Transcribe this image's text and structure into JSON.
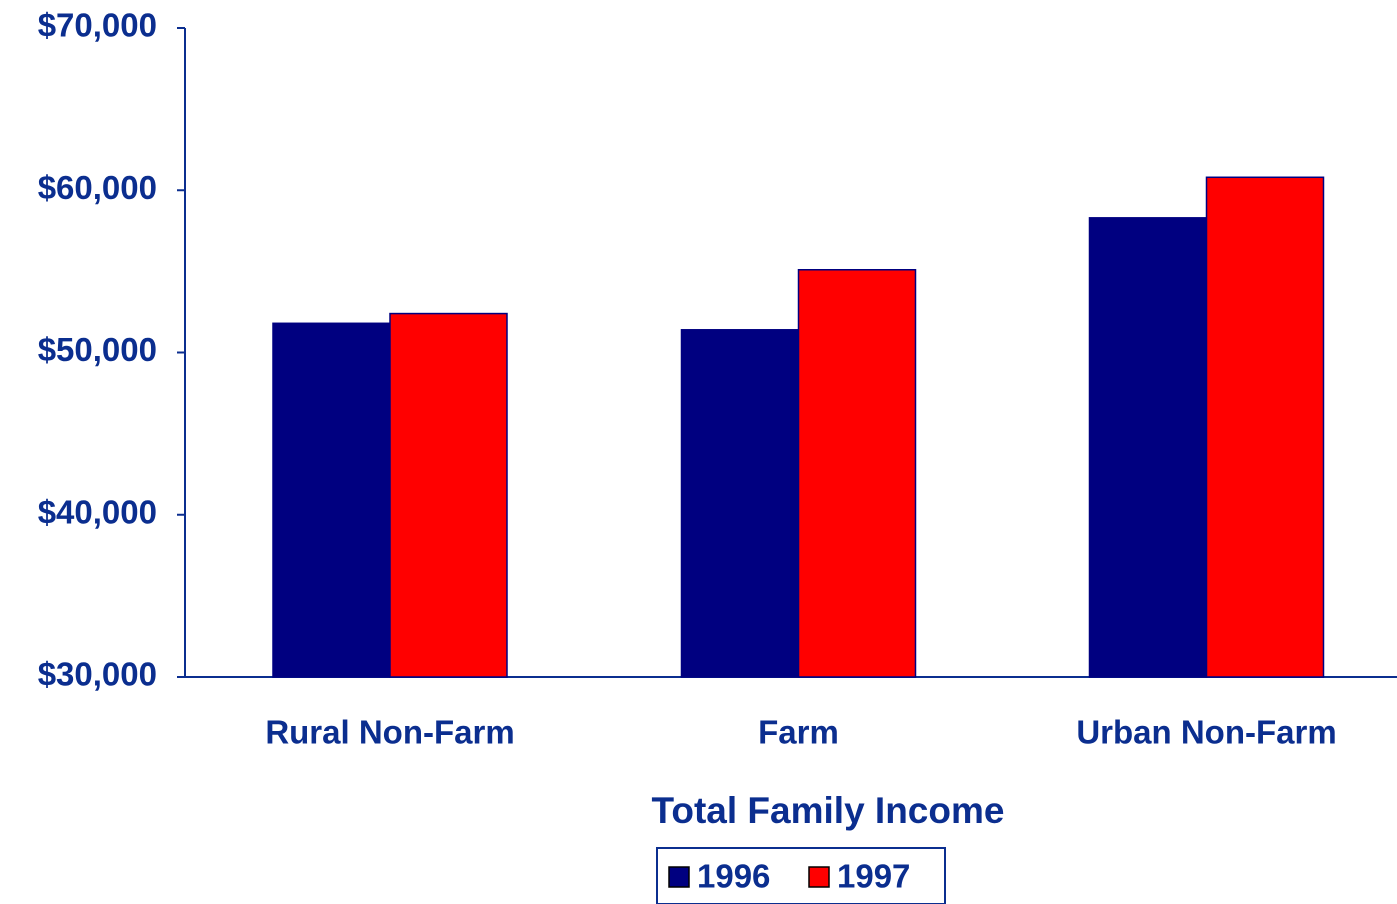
{
  "chart_data": {
    "type": "bar",
    "x_label": "Total Family Income",
    "categories": [
      "Rural Non-Farm",
      "Farm",
      "Urban Non-Farm"
    ],
    "series": [
      {
        "name": "1996",
        "color": "#000080",
        "values": [
          51800,
          51400,
          58300
        ]
      },
      {
        "name": "1997",
        "color": "#ff0000",
        "values": [
          52400,
          55100,
          60800
        ]
      }
    ],
    "ylim": [
      30000,
      70000
    ],
    "yticks": [
      {
        "value": 30000,
        "label": "$30,000"
      },
      {
        "value": 40000,
        "label": "$40,000"
      },
      {
        "value": 50000,
        "label": "$50,000"
      },
      {
        "value": 60000,
        "label": "$60,000"
      },
      {
        "value": 70000,
        "label": "$70,000"
      }
    ],
    "grid": false,
    "legend": "bottom"
  }
}
